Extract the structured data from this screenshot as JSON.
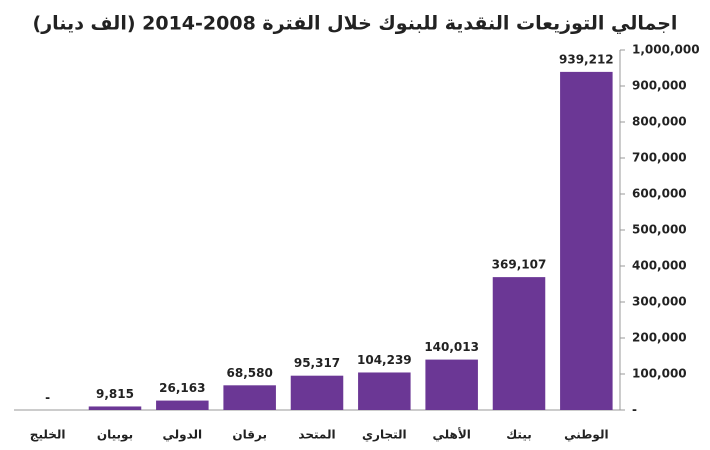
{
  "chart_data": {
    "type": "bar",
    "title": "اجمالي التوزيعات النقدية للبنوك خلال الفترة 2008-2014 (الف دينار)",
    "categories": [
      "الخليج",
      "بوبيان",
      "الدولي",
      "برقان",
      "المتحد",
      "التجاري",
      "الأهلي",
      "بيتك",
      "الوطني"
    ],
    "values": [
      0,
      9815,
      26163,
      68580,
      95317,
      104239,
      140013,
      369107,
      939212
    ],
    "value_labels": [
      "-",
      "9,815",
      "26,163",
      "68,580",
      "95,317",
      "104,239",
      "140,013",
      "369,107",
      "939,212"
    ],
    "color": "#6b3795",
    "ylim": [
      0,
      1000000
    ],
    "yticks": [
      {
        "value": 0,
        "label": "-"
      },
      {
        "value": 100000,
        "label": "100,000"
      },
      {
        "value": 200000,
        "label": "200,000"
      },
      {
        "value": 300000,
        "label": "300,000"
      },
      {
        "value": 400000,
        "label": "400,000"
      },
      {
        "value": 500000,
        "label": "500,000"
      },
      {
        "value": 600000,
        "label": "600,000"
      },
      {
        "value": 700000,
        "label": "700,000"
      },
      {
        "value": 800000,
        "label": "800,000"
      },
      {
        "value": 900000,
        "label": "900,000"
      },
      {
        "value": 1000000,
        "label": "1,000,000"
      }
    ],
    "y_axis_side": "right",
    "grid": false
  }
}
